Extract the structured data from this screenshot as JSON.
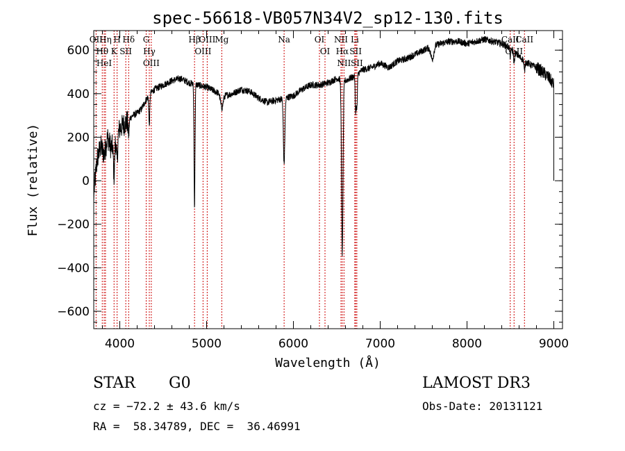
{
  "chart_data": {
    "type": "line",
    "title": "spec-56618-VB057N34V2_sp12-130.fits",
    "xlabel": "Wavelength (Å)",
    "ylabel": "Flux (relative)",
    "xlim": [
      3700,
      9100
    ],
    "ylim": [
      -680,
      690
    ],
    "xticks": [
      4000,
      5000,
      6000,
      7000,
      8000,
      9000
    ],
    "xtick_labels": [
      "4000",
      "5000",
      "6000",
      "7000",
      "8000",
      "9000"
    ],
    "yticks": [
      -600,
      -400,
      -200,
      0,
      200,
      400,
      600
    ],
    "ytick_labels": [
      "−600",
      "−400",
      "−200",
      "0",
      "200",
      "400",
      "600"
    ],
    "x_minor_step": 200,
    "y_minor_step": 50,
    "continuum": [
      [
        3700,
        -60
      ],
      [
        3740,
        100
      ],
      [
        3780,
        160
      ],
      [
        3820,
        120
      ],
      [
        3860,
        200
      ],
      [
        3900,
        150
      ],
      [
        3950,
        190
      ],
      [
        4000,
        240
      ],
      [
        4050,
        260
      ],
      [
        4100,
        280
      ],
      [
        4150,
        300
      ],
      [
        4200,
        310
      ],
      [
        4250,
        330
      ],
      [
        4300,
        370
      ],
      [
        4350,
        400
      ],
      [
        4400,
        420
      ],
      [
        4500,
        440
      ],
      [
        4600,
        460
      ],
      [
        4700,
        470
      ],
      [
        4800,
        450
      ],
      [
        4900,
        440
      ],
      [
        5000,
        430
      ],
      [
        5100,
        410
      ],
      [
        5200,
        390
      ],
      [
        5300,
        400
      ],
      [
        5400,
        420
      ],
      [
        5500,
        410
      ],
      [
        5600,
        380
      ],
      [
        5700,
        360
      ],
      [
        5800,
        370
      ],
      [
        5900,
        380
      ],
      [
        6000,
        390
      ],
      [
        6100,
        420
      ],
      [
        6200,
        440
      ],
      [
        6300,
        440
      ],
      [
        6400,
        450
      ],
      [
        6500,
        470
      ],
      [
        6600,
        460
      ],
      [
        6700,
        480
      ],
      [
        6800,
        510
      ],
      [
        6900,
        520
      ],
      [
        7000,
        540
      ],
      [
        7100,
        520
      ],
      [
        7200,
        550
      ],
      [
        7300,
        560
      ],
      [
        7400,
        580
      ],
      [
        7500,
        600
      ],
      [
        7600,
        620
      ],
      [
        7700,
        630
      ],
      [
        7800,
        640
      ],
      [
        7900,
        640
      ],
      [
        8000,
        630
      ],
      [
        8100,
        640
      ],
      [
        8200,
        650
      ],
      [
        8300,
        640
      ],
      [
        8400,
        630
      ],
      [
        8500,
        610
      ],
      [
        8600,
        570
      ],
      [
        8700,
        540
      ],
      [
        8800,
        520
      ],
      [
        8900,
        490
      ],
      [
        8950,
        470
      ],
      [
        9000,
        440
      ]
    ],
    "absorption_features": [
      {
        "center": 3934,
        "depth": 150,
        "width": 10
      },
      {
        "center": 3969,
        "depth": 120,
        "width": 10
      },
      {
        "center": 4102,
        "depth": 80,
        "width": 8
      },
      {
        "center": 4340,
        "depth": 140,
        "width": 8
      },
      {
        "center": 4861,
        "depth": 560,
        "width": 8
      },
      {
        "center": 5175,
        "depth": 60,
        "width": 20
      },
      {
        "center": 5893,
        "depth": 300,
        "width": 12
      },
      {
        "center": 6563,
        "depth": 800,
        "width": 12
      },
      {
        "center": 6717,
        "depth": 160,
        "width": 8
      },
      {
        "center": 6731,
        "depth": 160,
        "width": 8
      },
      {
        "center": 7600,
        "depth": 60,
        "width": 25
      },
      {
        "center": 8498,
        "depth": 40,
        "width": 8
      },
      {
        "center": 8542,
        "depth": 50,
        "width": 8
      },
      {
        "center": 8662,
        "depth": 50,
        "width": 8
      }
    ],
    "spectral_lines": [
      {
        "name": "OII",
        "wavelength": 3727
      },
      {
        "name": "Hθ",
        "wavelength": 3798
      },
      {
        "name": "HeI",
        "wavelength": 3820
      },
      {
        "name": "Hη",
        "wavelength": 3835
      },
      {
        "name": "K",
        "wavelength": 3934
      },
      {
        "name": "H",
        "wavelength": 3969
      },
      {
        "name": "SII",
        "wavelength": 4069
      },
      {
        "name": "Hδ",
        "wavelength": 4102
      },
      {
        "name": "G",
        "wavelength": 4304
      },
      {
        "name": "Hγ",
        "wavelength": 4340
      },
      {
        "name": "OIII",
        "wavelength": 4363
      },
      {
        "name": "Hβ",
        "wavelength": 4861
      },
      {
        "name": "OIII",
        "wavelength": 4959
      },
      {
        "name": "OIII",
        "wavelength": 5007
      },
      {
        "name": "Mg",
        "wavelength": 5175
      },
      {
        "name": "Na",
        "wavelength": 5893
      },
      {
        "name": "OI",
        "wavelength": 6300
      },
      {
        "name": "OI",
        "wavelength": 6364
      },
      {
        "name": "NII",
        "wavelength": 6548
      },
      {
        "name": "Hα",
        "wavelength": 6563
      },
      {
        "name": "NII",
        "wavelength": 6583
      },
      {
        "name": "Li",
        "wavelength": 6707
      },
      {
        "name": "SII",
        "wavelength": 6717
      },
      {
        "name": "SII",
        "wavelength": 6731
      },
      {
        "name": "CaII",
        "wavelength": 8498
      },
      {
        "name": "CaII",
        "wavelength": 8542
      },
      {
        "name": "CaII",
        "wavelength": 8662
      }
    ]
  },
  "info": {
    "object_class": "STAR",
    "subclass": "G0",
    "survey": "LAMOST DR3",
    "redshift": "cz = −72.2 ± 43.6 km/s",
    "obs_date": "Obs-Date: 20131121",
    "coords": "RA =  58.34789, DEC =  36.46991"
  },
  "colors": {
    "spectrum": "#000000",
    "line_marker": "#cc0000",
    "axes": "#000000"
  }
}
